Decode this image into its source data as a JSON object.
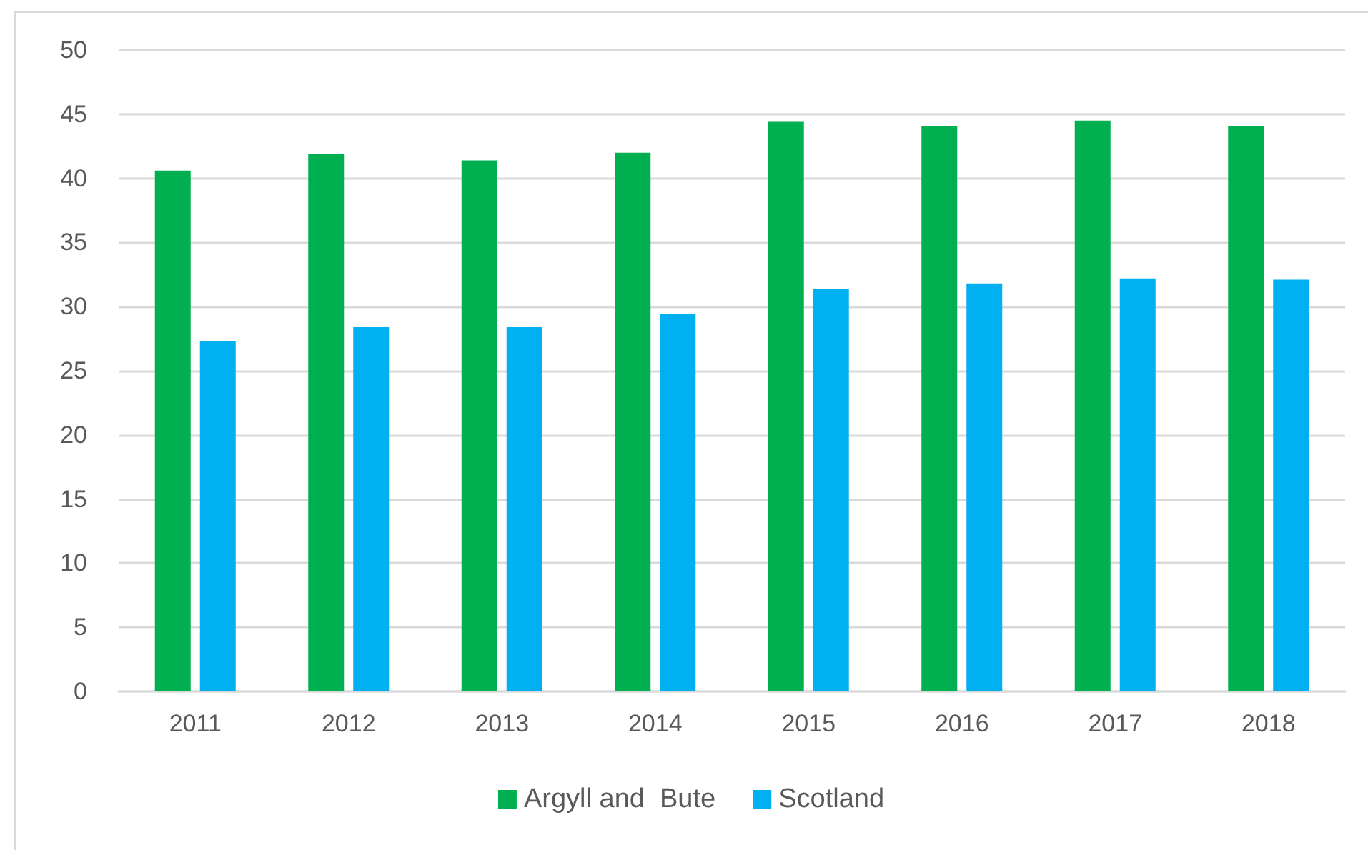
{
  "chart_data": {
    "type": "bar",
    "categories": [
      "2011",
      "2012",
      "2013",
      "2014",
      "2015",
      "2016",
      "2017",
      "2018"
    ],
    "series": [
      {
        "name": "Argyll and  Bute",
        "color": "#00b050",
        "values": [
          40.6,
          41.9,
          41.4,
          42.0,
          44.4,
          44.1,
          44.5,
          44.1
        ]
      },
      {
        "name": "Scotland",
        "color": "#00b0f0",
        "values": [
          27.3,
          28.4,
          28.4,
          29.4,
          31.4,
          31.8,
          32.2,
          32.1
        ]
      }
    ],
    "ylim": [
      0,
      50
    ],
    "yticks": [
      0,
      5,
      10,
      15,
      20,
      25,
      30,
      35,
      40,
      45,
      50
    ],
    "grid": "y",
    "legend": "bottom"
  }
}
